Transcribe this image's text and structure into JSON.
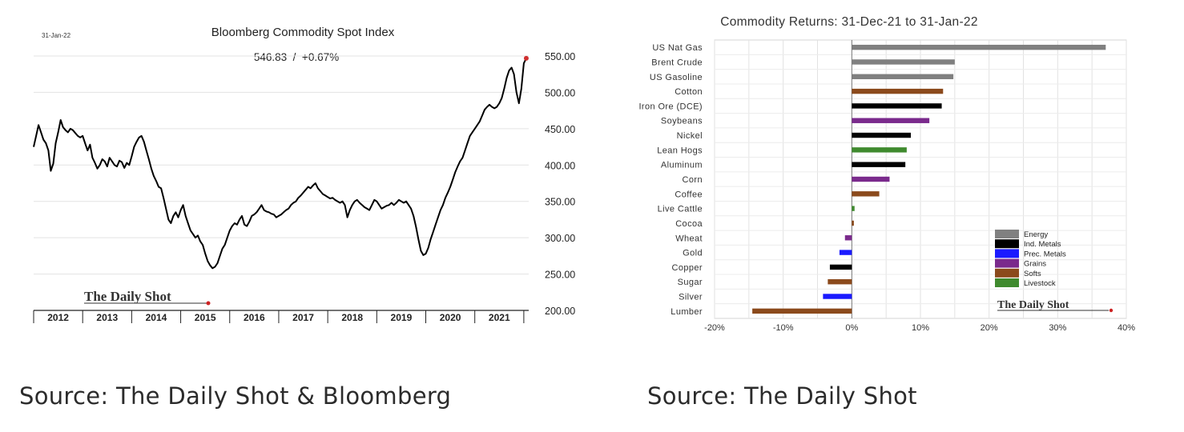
{
  "chart_data": [
    {
      "type": "line",
      "title": "Bloomberg Commodity Spot Index",
      "date_label": "31-Jan-22",
      "last_value_label": "546.83  /  +0.67%",
      "watermark": "The Daily Shot",
      "xlabel": "",
      "ylabel": "",
      "x_ticks": [
        "2012",
        "2013",
        "2014",
        "2015",
        "2016",
        "2017",
        "2018",
        "2019",
        "2020",
        "2021"
      ],
      "y_ticks": [
        "550.00",
        "500.00",
        "450.00",
        "400.00",
        "350.00",
        "300.00",
        "250.00",
        "200.00"
      ],
      "ylim": [
        200,
        550
      ],
      "xlim": [
        2012.0,
        2022.1
      ],
      "grid": true,
      "series": [
        {
          "x": [
            2012.0,
            2012.05,
            2012.1,
            2012.15,
            2012.2,
            2012.25,
            2012.3,
            2012.35,
            2012.4,
            2012.45,
            2012.5,
            2012.55,
            2012.6,
            2012.65,
            2012.7,
            2012.75,
            2012.8,
            2012.85,
            2012.9,
            2012.95,
            2013.0,
            2013.05,
            2013.1,
            2013.15,
            2013.2,
            2013.25,
            2013.3,
            2013.35,
            2013.4,
            2013.45,
            2013.5,
            2013.55,
            2013.6,
            2013.65,
            2013.7,
            2013.75,
            2013.8,
            2013.85,
            2013.9,
            2013.95,
            2014.0,
            2014.05,
            2014.1,
            2014.15,
            2014.2,
            2014.25,
            2014.3,
            2014.35,
            2014.4,
            2014.45,
            2014.5,
            2014.55,
            2014.6,
            2014.65,
            2014.7,
            2014.75,
            2014.8,
            2014.85,
            2014.9,
            2014.95,
            2015.0,
            2015.05,
            2015.1,
            2015.15,
            2015.2,
            2015.25,
            2015.3,
            2015.35,
            2015.4,
            2015.45,
            2015.5,
            2015.55,
            2015.6,
            2015.65,
            2015.7,
            2015.75,
            2015.8,
            2015.85,
            2015.9,
            2015.95,
            2016.0,
            2016.05,
            2016.1,
            2016.15,
            2016.2,
            2016.25,
            2016.3,
            2016.35,
            2016.4,
            2016.45,
            2016.5,
            2016.55,
            2016.6,
            2016.65,
            2016.7,
            2016.75,
            2016.8,
            2016.85,
            2016.9,
            2016.95,
            2017.0,
            2017.05,
            2017.1,
            2017.15,
            2017.2,
            2017.25,
            2017.3,
            2017.35,
            2017.4,
            2017.45,
            2017.5,
            2017.55,
            2017.6,
            2017.65,
            2017.7,
            2017.75,
            2017.8,
            2017.85,
            2017.9,
            2017.95,
            2018.0,
            2018.05,
            2018.1,
            2018.15,
            2018.2,
            2018.25,
            2018.3,
            2018.35,
            2018.4,
            2018.45,
            2018.5,
            2018.55,
            2018.6,
            2018.65,
            2018.7,
            2018.75,
            2018.8,
            2018.85,
            2018.9,
            2018.95,
            2019.0,
            2019.05,
            2019.1,
            2019.15,
            2019.2,
            2019.25,
            2019.3,
            2019.35,
            2019.4,
            2019.45,
            2019.5,
            2019.55,
            2019.6,
            2019.65,
            2019.7,
            2019.75,
            2019.8,
            2019.85,
            2019.9,
            2019.95,
            2020.0,
            2020.05,
            2020.1,
            2020.15,
            2020.2,
            2020.25,
            2020.3,
            2020.35,
            2020.4,
            2020.45,
            2020.5,
            2020.55,
            2020.6,
            2020.65,
            2020.7,
            2020.75,
            2020.8,
            2020.85,
            2020.9,
            2020.95,
            2021.0,
            2021.05,
            2021.1,
            2021.15,
            2021.2,
            2021.25,
            2021.3,
            2021.35,
            2021.4,
            2021.45,
            2021.5,
            2021.55,
            2021.6,
            2021.65,
            2021.7,
            2021.75,
            2021.8,
            2021.85,
            2021.9,
            2021.95,
            2022.0,
            2022.05
          ],
          "values": [
            425,
            440,
            455,
            445,
            435,
            430,
            420,
            392,
            402,
            430,
            445,
            462,
            452,
            448,
            445,
            450,
            448,
            444,
            440,
            438,
            440,
            430,
            420,
            428,
            410,
            403,
            395,
            400,
            408,
            405,
            398,
            410,
            405,
            400,
            398,
            406,
            404,
            396,
            403,
            400,
            412,
            425,
            432,
            438,
            440,
            432,
            420,
            408,
            395,
            385,
            378,
            370,
            368,
            355,
            340,
            325,
            320,
            330,
            335,
            328,
            338,
            345,
            330,
            320,
            310,
            305,
            300,
            303,
            295,
            290,
            278,
            268,
            262,
            258,
            260,
            265,
            275,
            285,
            290,
            300,
            310,
            316,
            320,
            318,
            325,
            330,
            318,
            316,
            322,
            330,
            332,
            335,
            340,
            345,
            338,
            336,
            335,
            333,
            332,
            328,
            330,
            332,
            335,
            338,
            340,
            345,
            348,
            350,
            355,
            358,
            362,
            366,
            370,
            368,
            372,
            375,
            368,
            364,
            360,
            358,
            356,
            354,
            355,
            352,
            350,
            348,
            350,
            345,
            328,
            338,
            345,
            350,
            352,
            348,
            345,
            342,
            340,
            338,
            345,
            352,
            350,
            345,
            340,
            342,
            344,
            345,
            348,
            345,
            348,
            352,
            350,
            348,
            350,
            345,
            340,
            330,
            315,
            298,
            282,
            276,
            278,
            286,
            298,
            308,
            318,
            328,
            338,
            345,
            355,
            362,
            370,
            380,
            390,
            398,
            405,
            410,
            420,
            430,
            440,
            445,
            450,
            455,
            460,
            468,
            476,
            480,
            483,
            480,
            478,
            480,
            485,
            492,
            505,
            520,
            530,
            534,
            525,
            500,
            485,
            505,
            540,
            546.83
          ]
        }
      ]
    },
    {
      "type": "bar",
      "orientation": "horizontal",
      "title": "Commodity Returns: 31-Dec-21 to 31-Jan-22",
      "watermark": "The Daily Shot",
      "xlabel": "",
      "ylabel": "",
      "x_ticks": [
        "-20%",
        "-10%",
        "0%",
        "10%",
        "20%",
        "30%",
        "40%"
      ],
      "xlim": [
        -20,
        40
      ],
      "grid": true,
      "legend_position": "bottom-right",
      "legend": [
        {
          "name": "Energy",
          "color": "#808080"
        },
        {
          "name": "Ind. Metals",
          "color": "#000000"
        },
        {
          "name": "Prec. Metals",
          "color": "#1a1aff"
        },
        {
          "name": "Grains",
          "color": "#7a2a8c"
        },
        {
          "name": "Softs",
          "color": "#8b4a1c"
        },
        {
          "name": "Livestock",
          "color": "#3f8a2e"
        }
      ],
      "categories": [
        "US Nat Gas",
        "Brent Crude",
        "US Gasoline",
        "Cotton",
        "Iron Ore (DCE)",
        "Soybeans",
        "Nickel",
        "Lean Hogs",
        "Aluminum",
        "Corn",
        "Coffee",
        "Live Cattle",
        "Cocoa",
        "Wheat",
        "Gold",
        "Copper",
        "Sugar",
        "Silver",
        "Lumber"
      ],
      "values": [
        37,
        15,
        14.8,
        13.3,
        13.1,
        11.3,
        8.6,
        8,
        7.8,
        5.5,
        4,
        0.4,
        0.3,
        -1,
        -1.8,
        -3.2,
        -3.5,
        -4.2,
        -14.5
      ],
      "groups": [
        "Energy",
        "Energy",
        "Energy",
        "Softs",
        "Ind. Metals",
        "Grains",
        "Ind. Metals",
        "Livestock",
        "Ind. Metals",
        "Grains",
        "Softs",
        "Livestock",
        "Softs",
        "Grains",
        "Prec. Metals",
        "Ind. Metals",
        "Softs",
        "Prec. Metals",
        "Softs"
      ]
    }
  ],
  "sources": {
    "left": "Source: The Daily Shot & Bloomberg",
    "right": "Source: The Daily Shot"
  }
}
